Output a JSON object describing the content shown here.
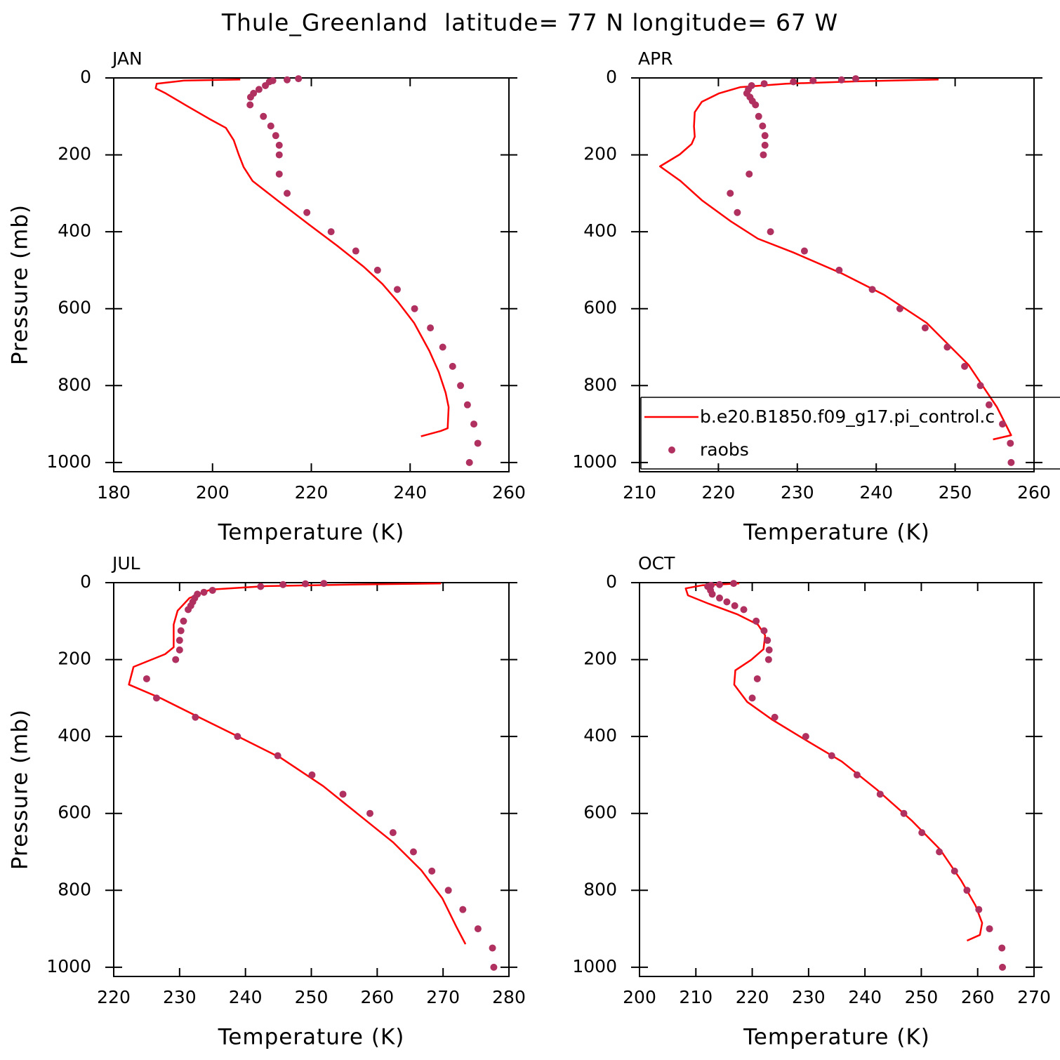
{
  "title": "Thule_Greenland  latitude= 77 N longitude= 67 W",
  "chart_data": [
    {
      "type": "line",
      "panel_title": "JAN",
      "xlabel": "Temperature (K)",
      "ylabel": "Pressure (mb)",
      "xlim": [
        180,
        260
      ],
      "xticks": [
        180,
        200,
        220,
        240,
        260
      ],
      "ylim": [
        1024,
        0
      ],
      "yticks": [
        0,
        200,
        400,
        600,
        800,
        1000
      ],
      "series": [
        {
          "type": "line",
          "color": "#ff0000",
          "x": [
            205.6,
            194.2,
            188.7,
            188.5,
            190.5,
            194.6,
            199.3,
            202.7,
            204.3,
            205.3,
            206.3,
            208.1,
            213.1,
            219.5,
            225.2,
            230.6,
            234.4,
            237.5,
            240.8,
            243.9,
            245.8,
            247.2,
            247.8,
            247.6,
            246.2,
            242.2
          ],
          "values": [
            4,
            7,
            15,
            27,
            40,
            71,
            106,
            130,
            162,
            199,
            232,
            268,
            318,
            381,
            436,
            491,
            536,
            582,
            637,
            710,
            765,
            819,
            856,
            911,
            918,
            932
          ]
        },
        {
          "type": "scatter",
          "color": "#b03060",
          "x": [
            217.4,
            215.1,
            212.2,
            211.5,
            210.7,
            209.4,
            208.3,
            207.7,
            207.6,
            210.3,
            211.8,
            212.8,
            213.5,
            213.5,
            213.5,
            215.1,
            219.1,
            224.0,
            229.0,
            233.4,
            237.4,
            240.9,
            244.1,
            246.6,
            248.6,
            250.2,
            251.6,
            252.9,
            253.7,
            252.0
          ],
          "values": [
            2,
            5,
            7,
            10,
            20,
            30,
            40,
            50,
            70,
            100,
            125,
            150,
            175,
            200,
            250,
            300,
            350,
            400,
            450,
            500,
            550,
            600,
            650,
            700,
            750,
            800,
            850,
            900,
            950,
            1000
          ]
        }
      ]
    },
    {
      "type": "line",
      "panel_title": "APR",
      "xlabel": "Temperature (K)",
      "xlim": [
        210,
        260
      ],
      "xticks": [
        210,
        220,
        230,
        240,
        250,
        260
      ],
      "ylim": [
        1024,
        0
      ],
      "yticks": [
        0,
        200,
        400,
        600,
        800,
        1000
      ],
      "legend": "lower right",
      "series": [
        {
          "type": "line",
          "name": "b.e20.B1850.f09_g17.pi_control.c",
          "color": "#ff0000",
          "x": [
            247.9,
            237.5,
            228.6,
            222.8,
            220.1,
            217.9,
            217.0,
            216.9,
            217.0,
            216.6,
            215.1,
            212.6,
            215.2,
            217.9,
            221.5,
            225.0,
            229.5,
            235.7,
            241.0,
            246.4,
            251.7,
            255.3,
            257.1,
            254.8
          ],
          "values": [
            4,
            9,
            15,
            24,
            40,
            62,
            89,
            126,
            153,
            172,
            199,
            230,
            268,
            318,
            372,
            418,
            454,
            509,
            564,
            637,
            746,
            856,
            929,
            940
          ]
        },
        {
          "type": "scatter",
          "name": "raobs",
          "color": "#b03060",
          "x": [
            237.4,
            235.6,
            232.0,
            229.5,
            225.8,
            224.2,
            223.8,
            223.6,
            224.0,
            224.3,
            224.7,
            225.1,
            225.6,
            225.9,
            225.9,
            225.7,
            223.9,
            221.5,
            222.4,
            226.6,
            230.9,
            235.3,
            239.5,
            243.0,
            246.2,
            249.0,
            251.2,
            253.2,
            254.3,
            256.0,
            257.0,
            257.1
          ],
          "values": [
            2,
            5,
            7,
            10,
            15,
            20,
            30,
            40,
            50,
            60,
            70,
            100,
            125,
            150,
            175,
            200,
            250,
            300,
            350,
            400,
            450,
            500,
            550,
            600,
            650,
            700,
            750,
            800,
            850,
            900,
            950,
            1000
          ]
        }
      ]
    },
    {
      "type": "line",
      "panel_title": "JUL",
      "xlabel": "Temperature (K)",
      "ylabel": "Pressure (mb)",
      "xlim": [
        220,
        280
      ],
      "xticks": [
        220,
        230,
        240,
        250,
        260,
        270,
        280
      ],
      "ylim": [
        1024,
        0
      ],
      "yticks": [
        0,
        200,
        400,
        600,
        800,
        1000
      ],
      "series": [
        {
          "type": "line",
          "color": "#ff0000",
          "x": [
            269.7,
            256.0,
            243.2,
            234.7,
            231.5,
            229.7,
            229.1,
            229.1,
            229.1,
            227.8,
            223.0,
            222.3,
            227.2,
            232.6,
            239.0,
            245.4,
            251.8,
            257.1,
            262.4,
            266.7,
            269.9,
            272.0,
            273.4
          ],
          "values": [
            2,
            5,
            9,
            18,
            40,
            73,
            109,
            146,
            168,
            186,
            219,
            265,
            301,
            347,
            401,
            456,
            529,
            602,
            675,
            748,
            821,
            894,
            940
          ]
        },
        {
          "type": "scatter",
          "color": "#b03060",
          "x": [
            251.9,
            249.1,
            245.7,
            242.3,
            235.0,
            233.7,
            232.7,
            232.3,
            232.0,
            231.7,
            231.3,
            230.6,
            230.2,
            230.0,
            230.0,
            229.4,
            225.0,
            226.5,
            232.4,
            238.8,
            244.9,
            250.1,
            254.8,
            258.9,
            262.4,
            265.5,
            268.3,
            270.8,
            273.0,
            275.3,
            277.5,
            277.7
          ],
          "values": [
            2,
            3,
            5,
            10,
            20,
            25,
            30,
            40,
            50,
            60,
            70,
            100,
            125,
            150,
            175,
            200,
            250,
            300,
            350,
            400,
            450,
            500,
            550,
            600,
            650,
            700,
            750,
            800,
            850,
            900,
            950,
            1000
          ]
        }
      ]
    },
    {
      "type": "line",
      "panel_title": "OCT",
      "xlabel": "Temperature (K)",
      "xlim": [
        200,
        270
      ],
      "xticks": [
        200,
        210,
        220,
        230,
        240,
        250,
        260,
        270
      ],
      "ylim": [
        1024,
        0
      ],
      "yticks": [
        0,
        200,
        400,
        600,
        800,
        1000
      ],
      "series": [
        {
          "type": "line",
          "color": "#ff0000",
          "x": [
            217.7,
            211.1,
            208.2,
            208.6,
            212.3,
            217.3,
            221.0,
            222.3,
            222.0,
            219.8,
            217.0,
            216.8,
            219.1,
            223.5,
            229.7,
            235.9,
            242.1,
            248.4,
            253.3,
            257.1,
            259.6,
            260.8,
            260.4,
            258.1
          ],
          "values": [
            2,
            7,
            15,
            33,
            55,
            82,
            109,
            137,
            173,
            201,
            228,
            265,
            310,
            356,
            411,
            465,
            538,
            620,
            693,
            775,
            839,
            885,
            916,
            931
          ]
        },
        {
          "type": "scatter",
          "color": "#b03060",
          "x": [
            216.7,
            214.2,
            212.7,
            212.1,
            212.6,
            212.9,
            214.2,
            215.5,
            216.9,
            218.5,
            220.7,
            222.1,
            222.7,
            223.0,
            222.9,
            220.9,
            220.0,
            224.0,
            229.5,
            234.1,
            238.6,
            242.7,
            246.9,
            250.1,
            253.2,
            255.9,
            258.1,
            260.2,
            262.1,
            264.3,
            264.4
          ],
          "values": [
            2,
            5,
            7,
            10,
            20,
            30,
            40,
            50,
            60,
            70,
            100,
            125,
            150,
            175,
            200,
            250,
            300,
            350,
            400,
            450,
            500,
            550,
            600,
            650,
            700,
            750,
            800,
            850,
            900,
            950,
            1000
          ]
        }
      ]
    }
  ]
}
